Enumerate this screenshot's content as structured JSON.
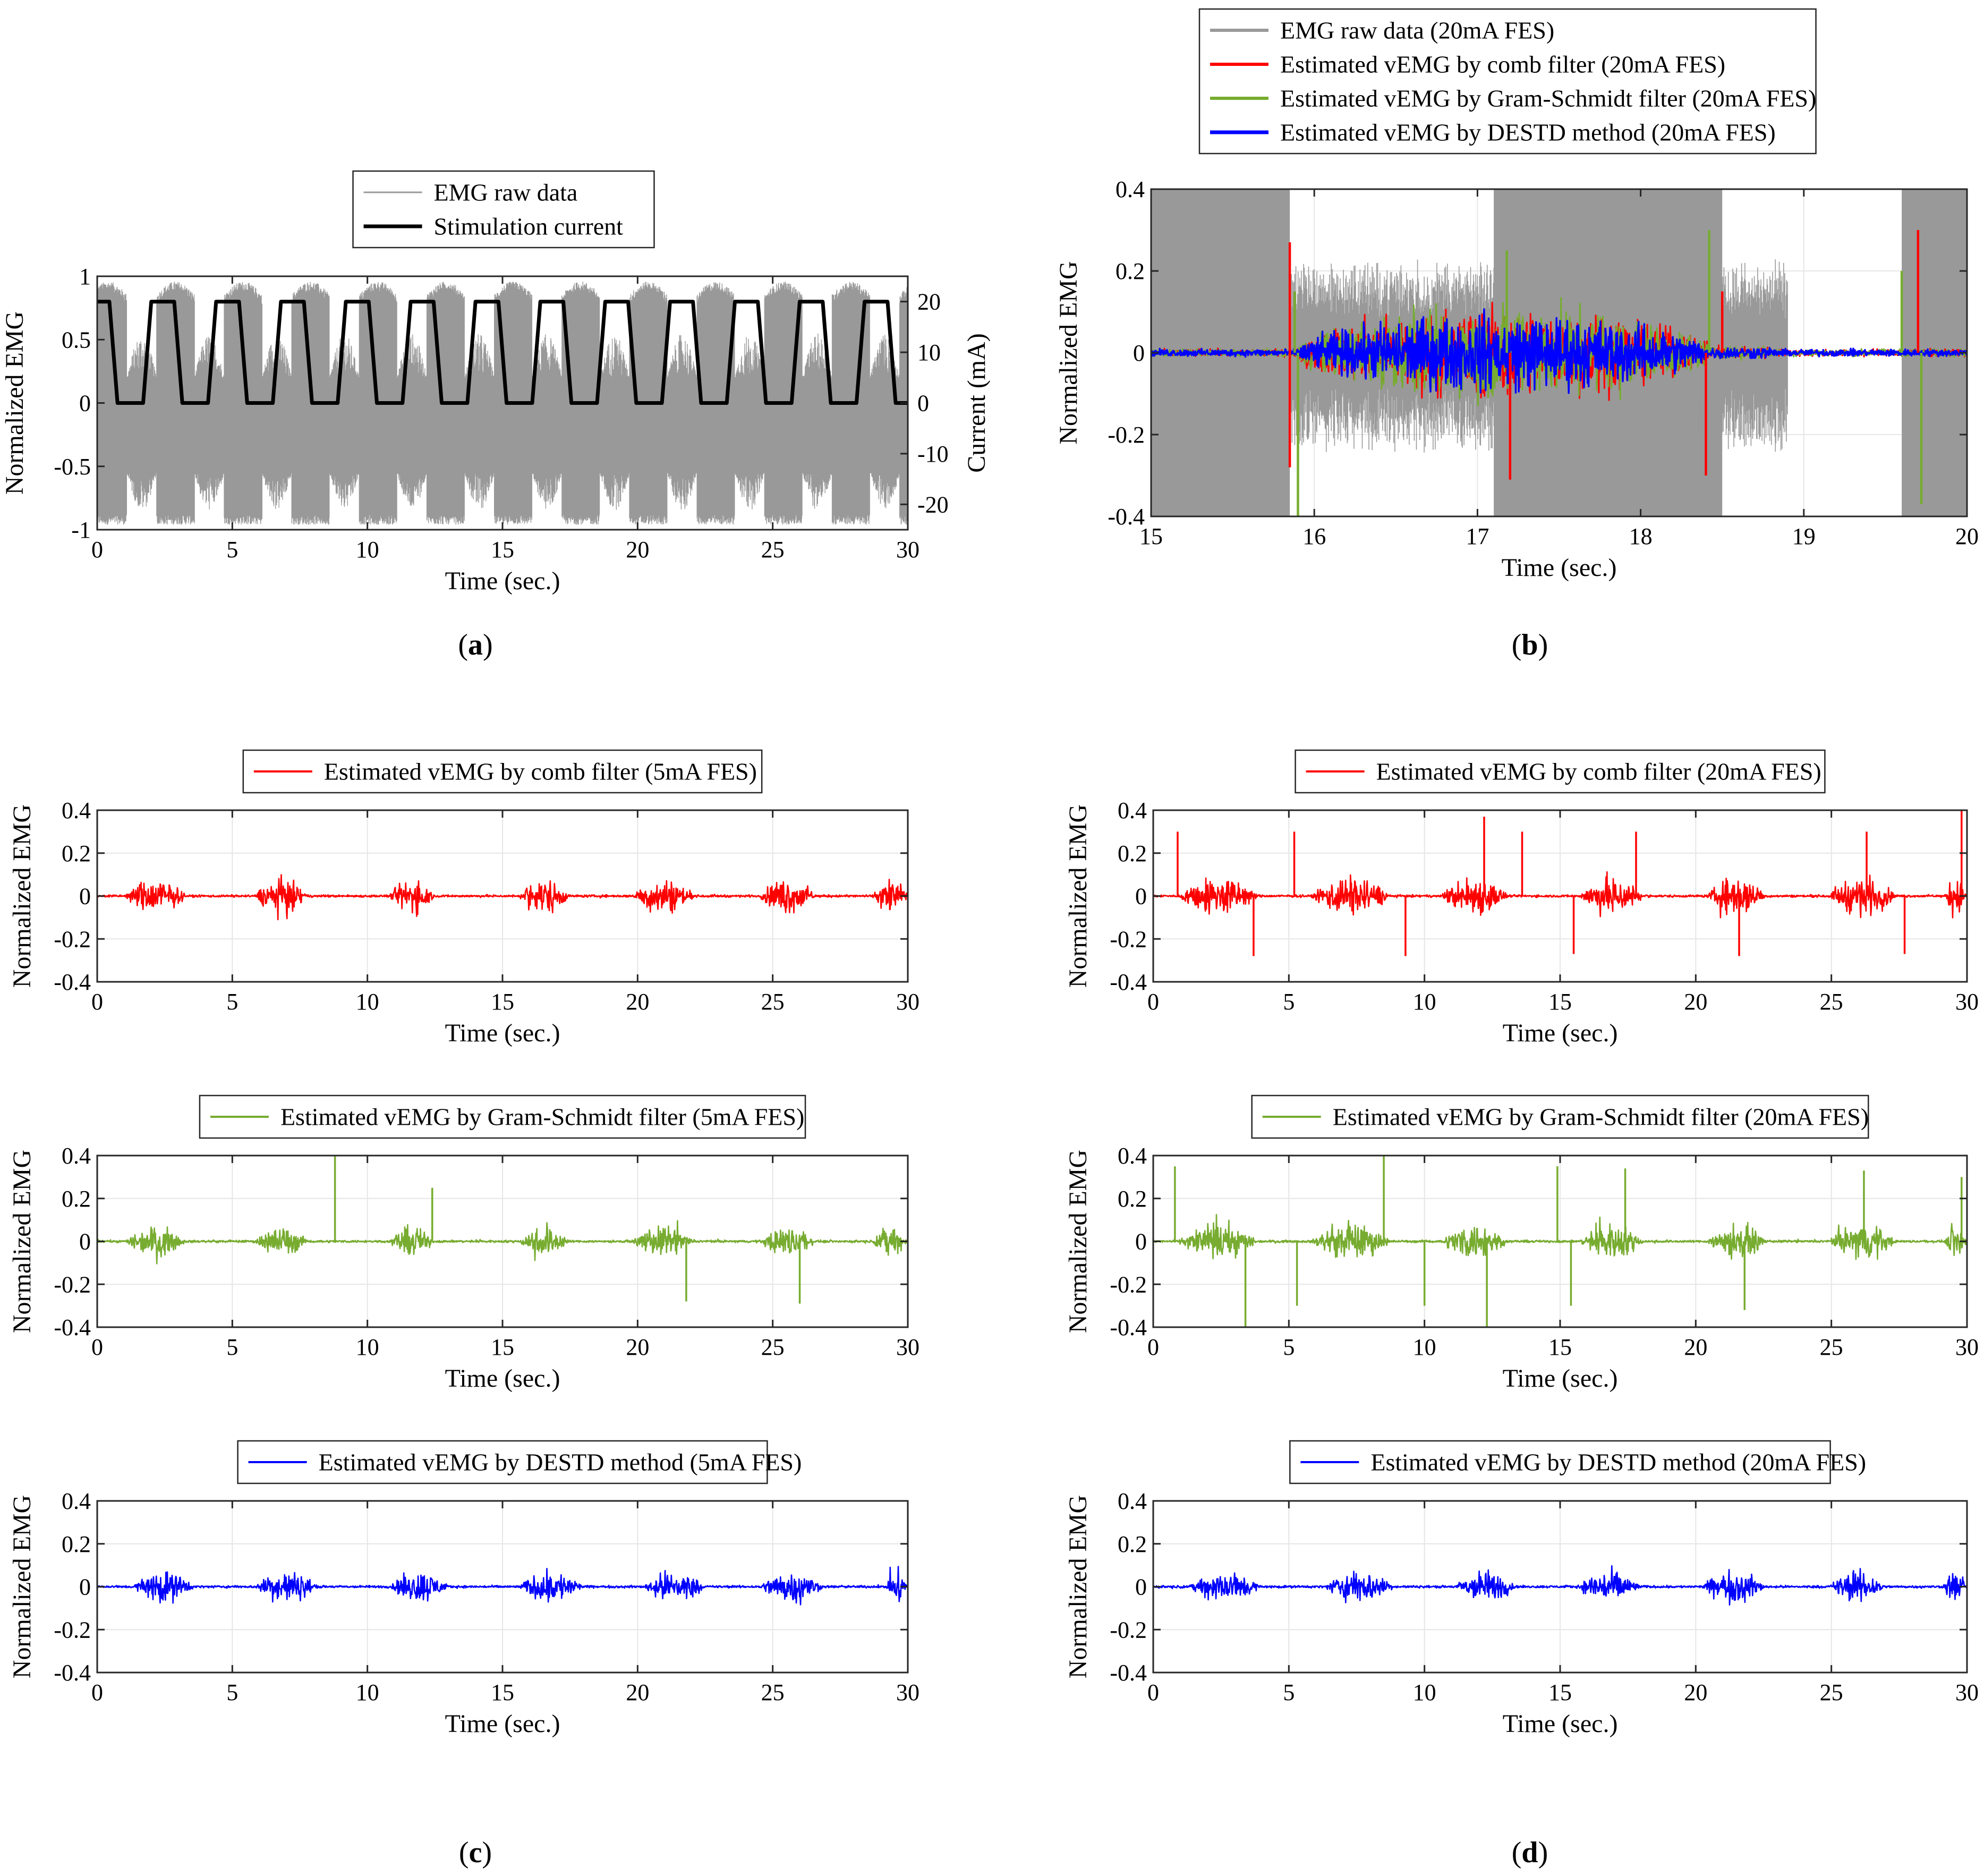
{
  "colors": {
    "raw": "#999999",
    "stim": "#000000",
    "comb": "#ff0000",
    "gram": "#77ac30",
    "destd": "#0000ff",
    "grid": "#e6e6e6",
    "axis": "#262626"
  },
  "captions": {
    "a": "a",
    "b": "b",
    "c": "c",
    "d": "d"
  },
  "chart_data": [
    {
      "id": "a",
      "type": "line",
      "xlabel": "Time (sec.)",
      "ylabel": "Normalized EMG",
      "ylabel_right": "Current (mA)",
      "xlim": [
        0,
        30
      ],
      "ylim": [
        -1,
        1
      ],
      "ylim_right": [
        -25,
        25
      ],
      "xticks": [
        0,
        5,
        10,
        15,
        20,
        25,
        30
      ],
      "yticks": [
        -1,
        -0.5,
        0,
        0.5,
        1
      ],
      "yticklabels": [
        "-1",
        "-0.5",
        "0",
        "0.5",
        "1"
      ],
      "yticks_right": [
        -20,
        -10,
        0,
        10,
        20
      ],
      "yticklabels_right": [
        "-20",
        "-10",
        "0",
        "10",
        "20"
      ],
      "grid": false,
      "legend": [
        "EMG raw data",
        "Stimulation current"
      ],
      "legend_position": "top",
      "series": [
        {
          "name": "EMG raw data",
          "color_key": "raw",
          "kind": "raw_envelope",
          "period": 2.5,
          "on_fraction": 0.56,
          "amp_high": 0.82,
          "amp_low": -0.92
        },
        {
          "name": "Stimulation current",
          "color_key": "stim",
          "kind": "trapezoid",
          "axis": "right",
          "unit": "mA",
          "period": 2.5,
          "high": 20,
          "low": 0,
          "ramp": 0.3,
          "high_duration": 0.9,
          "low_duration": 1.0
        }
      ]
    },
    {
      "id": "b",
      "type": "line",
      "xlabel": "Time (sec.)",
      "ylabel": "Normalized EMG",
      "xlim": [
        15,
        20
      ],
      "ylim": [
        -0.4,
        0.4
      ],
      "xticks": [
        15,
        16,
        17,
        18,
        19,
        20
      ],
      "yticks": [
        -0.4,
        -0.2,
        0,
        0.2,
        0.4
      ],
      "yticklabels": [
        "-0.4",
        "-0.2",
        "0",
        "0.2",
        "0.4"
      ],
      "grid": true,
      "legend_position": "above",
      "legend": [
        "EMG raw data (20mA FES)",
        "Estimated vEMG by comb filter (20mA FES)",
        "Estimated vEMG by Gram-Schmidt filter (20mA FES)",
        "Estimated vEMG by DESTD method (20mA FES)"
      ],
      "raw_saturated_intervals": [
        [
          15.0,
          15.85
        ],
        [
          17.1,
          18.5
        ],
        [
          19.6,
          20.0
        ]
      ],
      "activity_bursts": [
        [
          15.9,
          18.8
        ]
      ],
      "series": [
        {
          "name": "EMG raw data (20mA FES)",
          "color_key": "raw",
          "peak": 0.4
        },
        {
          "name": "Estimated vEMG by comb filter (20mA FES)",
          "color_key": "comb",
          "peak": 0.3
        },
        {
          "name": "Estimated vEMG by Gram-Schmidt filter (20mA FES)",
          "color_key": "gram",
          "peak": 0.35
        },
        {
          "name": "Estimated vEMG by DESTD method (20mA FES)",
          "color_key": "destd",
          "peak": 0.17
        }
      ]
    },
    {
      "id": "c1",
      "type": "line",
      "xlabel": "Time (sec.)",
      "ylabel": "Normalized EMG",
      "xlim": [
        0,
        30
      ],
      "ylim": [
        -0.4,
        0.4
      ],
      "xticks": [
        0,
        5,
        10,
        15,
        20,
        25,
        30
      ],
      "yticks": [
        -0.4,
        -0.2,
        0,
        0.2,
        0.4
      ],
      "yticklabels": [
        "-0.4",
        "-0.2",
        "0",
        "0.2",
        "0.4"
      ],
      "grid": true,
      "legend": [
        "Estimated vEMG by comb filter (5mA FES)"
      ],
      "series": [
        {
          "name": "Estimated vEMG by comb filter (5mA FES)",
          "color_key": "comb",
          "bursts": [
            1.0,
            3.3,
            5.8,
            7.8,
            10.8,
            12.5,
            15.6,
            17.5,
            19.8,
            22.1,
            24.5,
            26.6,
            28.7,
            30.0
          ],
          "amplitude": 0.18,
          "spikes": []
        }
      ]
    },
    {
      "id": "c2",
      "type": "line",
      "xlabel": "Time (sec.)",
      "ylabel": "Normalized EMG",
      "xlim": [
        0,
        30
      ],
      "ylim": [
        -0.4,
        0.4
      ],
      "xticks": [
        0,
        5,
        10,
        15,
        20,
        25,
        30
      ],
      "yticks": [
        -0.4,
        -0.2,
        0,
        0.2,
        0.4
      ],
      "yticklabels": [
        "-0.4",
        "-0.2",
        "0",
        "0.2",
        "0.4"
      ],
      "grid": true,
      "legend": [
        "Estimated vEMG by Gram-Schmidt filter (5mA FES)"
      ],
      "series": [
        {
          "name": "Estimated vEMG by Gram-Schmidt filter (5mA FES)",
          "color_key": "gram",
          "bursts": [
            1.0,
            3.3,
            5.8,
            7.8,
            10.8,
            12.5,
            15.6,
            17.5,
            19.8,
            22.1,
            24.5,
            26.6,
            28.7,
            30.0
          ],
          "amplitude": 0.15,
          "spikes": [
            [
              8.8,
              0.4
            ],
            [
              12.4,
              0.25
            ],
            [
              21.8,
              -0.28
            ],
            [
              26.0,
              -0.29
            ]
          ]
        }
      ]
    },
    {
      "id": "c3",
      "type": "line",
      "xlabel": "Time (sec.)",
      "ylabel": "Normalized EMG",
      "xlim": [
        0,
        30
      ],
      "ylim": [
        -0.4,
        0.4
      ],
      "xticks": [
        0,
        5,
        10,
        15,
        20,
        25,
        30
      ],
      "yticks": [
        -0.4,
        -0.2,
        0,
        0.2,
        0.4
      ],
      "yticklabels": [
        "-0.4",
        "-0.2",
        "0",
        "0.2",
        "0.4"
      ],
      "grid": true,
      "legend": [
        "Estimated vEMG by DESTD method (5mA FES)"
      ],
      "series": [
        {
          "name": "Estimated vEMG by DESTD method (5mA FES)",
          "color_key": "destd",
          "bursts": [
            1.3,
            3.6,
            5.8,
            8.2,
            10.8,
            13.0,
            15.6,
            18.0,
            20.2,
            22.5,
            24.5,
            26.9,
            29.2,
            30.0
          ],
          "amplitude": 0.16,
          "spikes": []
        }
      ]
    },
    {
      "id": "d1",
      "type": "line",
      "xlabel": "Time (sec.)",
      "ylabel": "Normalized EMG",
      "xlim": [
        0,
        30
      ],
      "ylim": [
        -0.4,
        0.4
      ],
      "xticks": [
        0,
        5,
        10,
        15,
        20,
        25,
        30
      ],
      "yticks": [
        -0.4,
        -0.2,
        0,
        0.2,
        0.4
      ],
      "yticklabels": [
        "-0.4",
        "-0.2",
        "0",
        "0.2",
        "0.4"
      ],
      "grid": true,
      "legend": [
        "Estimated vEMG by comb filter (20mA FES)"
      ],
      "series": [
        {
          "name": "Estimated vEMG by comb filter (20mA FES)",
          "color_key": "comb",
          "bursts": [
            0.9,
            3.9,
            5.8,
            8.8,
            10.6,
            13.1,
            15.7,
            18.1,
            20.4,
            22.6,
            24.9,
            27.4,
            29.2,
            30.0
          ],
          "amplitude": 0.2,
          "spikes": [
            [
              0.9,
              0.3
            ],
            [
              3.7,
              -0.28
            ],
            [
              5.2,
              0.3
            ],
            [
              9.3,
              -0.28
            ],
            [
              12.2,
              0.37
            ],
            [
              13.6,
              0.3
            ],
            [
              15.5,
              -0.27
            ],
            [
              17.8,
              0.3
            ],
            [
              21.6,
              -0.28
            ],
            [
              26.3,
              0.3
            ],
            [
              27.7,
              -0.27
            ],
            [
              29.8,
              0.4
            ]
          ]
        }
      ]
    },
    {
      "id": "d2",
      "type": "line",
      "xlabel": "Time (sec.)",
      "ylabel": "Normalized EMG",
      "xlim": [
        0,
        30
      ],
      "ylim": [
        -0.4,
        0.4
      ],
      "xticks": [
        0,
        5,
        10,
        15,
        20,
        25,
        30
      ],
      "yticks": [
        -0.4,
        -0.2,
        0,
        0.2,
        0.4
      ],
      "yticklabels": [
        "-0.4",
        "-0.2",
        "0",
        "0.2",
        "0.4"
      ],
      "grid": true,
      "legend": [
        "Estimated vEMG by Gram-Schmidt filter (20mA FES)"
      ],
      "series": [
        {
          "name": "Estimated vEMG by Gram-Schmidt filter (20mA FES)",
          "color_key": "gram",
          "bursts": [
            0.9,
            3.9,
            5.8,
            8.8,
            10.6,
            13.1,
            15.7,
            18.1,
            20.4,
            22.6,
            24.9,
            27.4,
            29.2,
            30.0
          ],
          "amplitude": 0.18,
          "spikes": [
            [
              0.8,
              0.35
            ],
            [
              3.4,
              -0.4
            ],
            [
              5.3,
              -0.3
            ],
            [
              8.5,
              0.4
            ],
            [
              10.0,
              -0.3
            ],
            [
              12.3,
              -0.4
            ],
            [
              14.9,
              0.35
            ],
            [
              15.4,
              -0.3
            ],
            [
              17.4,
              0.34
            ],
            [
              21.8,
              -0.32
            ],
            [
              26.2,
              0.33
            ],
            [
              29.8,
              0.3
            ]
          ]
        }
      ]
    },
    {
      "id": "d3",
      "type": "line",
      "xlabel": "Time (sec.)",
      "ylabel": "Normalized EMG",
      "xlim": [
        0,
        30
      ],
      "ylim": [
        -0.4,
        0.4
      ],
      "xticks": [
        0,
        5,
        10,
        15,
        20,
        25,
        30
      ],
      "yticks": [
        -0.4,
        -0.2,
        0,
        0.2,
        0.4
      ],
      "yticklabels": [
        "-0.4",
        "-0.2",
        "0",
        "0.2",
        "0.4"
      ],
      "grid": true,
      "legend": [
        "Estimated vEMG by DESTD method (20mA FES)"
      ],
      "series": [
        {
          "name": "Estimated vEMG by DESTD method (20mA FES)",
          "color_key": "destd",
          "bursts": [
            1.3,
            4.0,
            6.3,
            8.9,
            11.1,
            13.4,
            15.6,
            18.0,
            20.2,
            22.6,
            24.9,
            27.0,
            29.1,
            30.0
          ],
          "amplitude": 0.16,
          "spikes": []
        }
      ]
    }
  ]
}
